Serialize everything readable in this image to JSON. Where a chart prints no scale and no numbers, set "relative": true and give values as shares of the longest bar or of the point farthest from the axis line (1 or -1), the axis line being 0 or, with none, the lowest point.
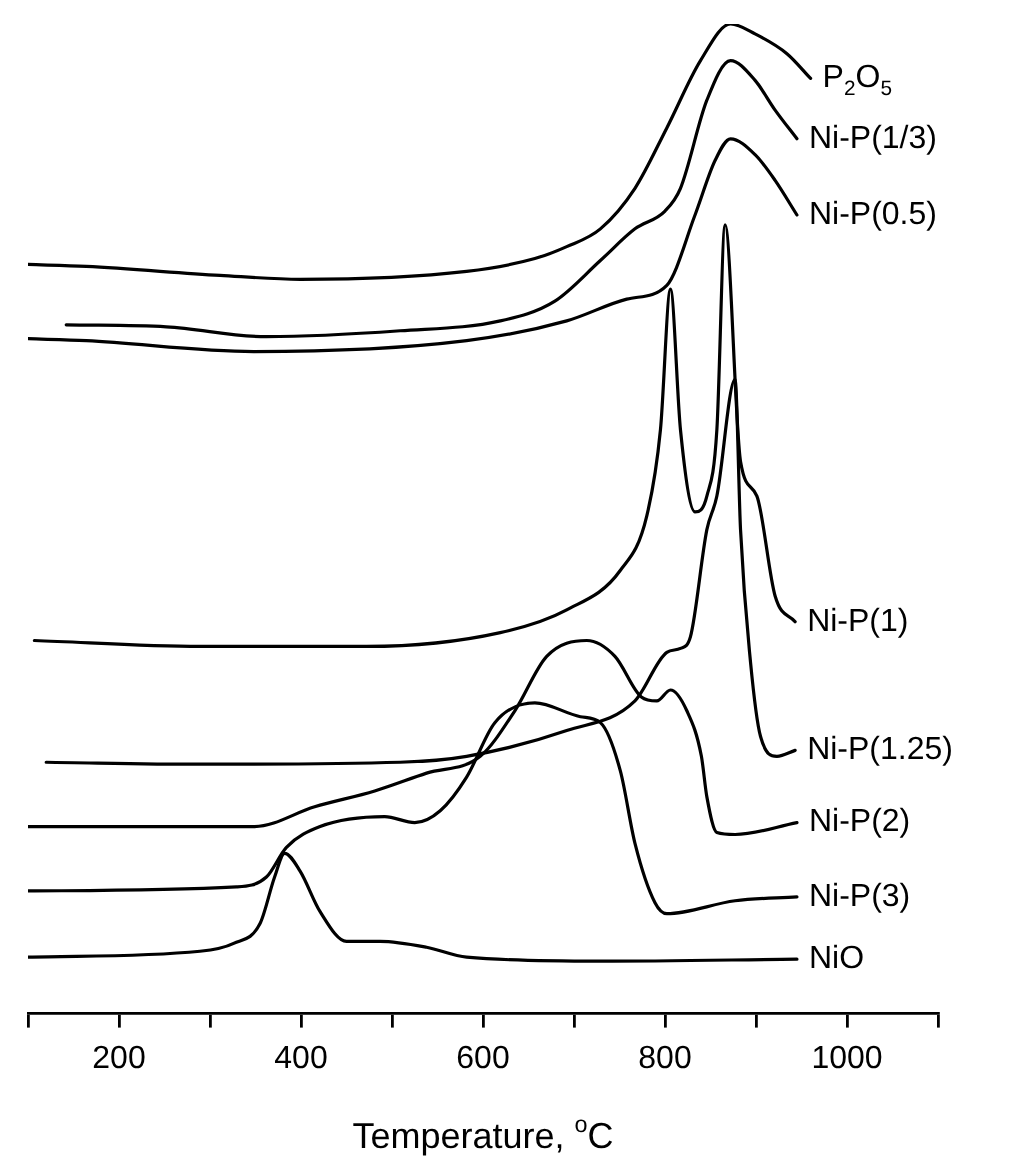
{
  "chart_data": {
    "type": "line",
    "relative": true,
    "xlabel": "Temperature, $^{o}$C",
    "xlim": [
      100,
      1100
    ],
    "xticks": [
      {
        "value": 100,
        "label": null
      },
      200,
      {
        "value": 300,
        "label": null
      },
      400,
      {
        "value": 500,
        "label": null
      },
      600,
      {
        "value": 700,
        "label": null
      },
      800,
      {
        "value": 900,
        "label": null
      },
      1000,
      {
        "value": 1100,
        "label": null
      }
    ],
    "grid": false,
    "legend": false,
    "marker": "none",
    "line_style": "solid",
    "series": [
      {
        "name": "P$_{2}$O$_{5}$",
        "color": "#000000",
        "x": [
          100,
          164,
          311,
          399,
          582,
          657,
          692,
          729,
          767,
          802,
          839,
          872,
          899,
          934,
          960
        ],
        "values": [
          0.757,
          0.755,
          0.746,
          0.742,
          0.75,
          0.763,
          0.775,
          0.793,
          0.834,
          0.895,
          0.963,
          1.0,
          0.99,
          0.97,
          0.945
        ]
      },
      {
        "name": "Ni-P(1/3)",
        "color": "#000000",
        "x": [
          142,
          252,
          362,
          509,
          619,
          679,
          729,
          767,
          800,
          817,
          846,
          872,
          899,
          921,
          945
        ],
        "values": [
          0.696,
          0.694,
          0.684,
          0.69,
          0.7,
          0.72,
          0.761,
          0.793,
          0.811,
          0.834,
          0.923,
          0.963,
          0.943,
          0.913,
          0.884
        ]
      },
      {
        "name": "Ni-P(0.5)",
        "color": "#000000",
        "x": [
          100,
          164,
          348,
          582,
          692,
          758,
          802,
          833,
          855,
          872,
          899,
          921,
          945
        ],
        "values": [
          0.682,
          0.68,
          0.669,
          0.68,
          0.7,
          0.722,
          0.736,
          0.807,
          0.862,
          0.884,
          0.868,
          0.842,
          0.807
        ]
      },
      {
        "name": "Ni-P(1)",
        "color": "#000000",
        "x": [
          107,
          289,
          472,
          619,
          692,
          751,
          780,
          795,
          806,
          817,
          833,
          846,
          857,
          866,
          883,
          901,
          921,
          943
        ],
        "values": [
          0.377,
          0.371,
          0.371,
          0.385,
          0.408,
          0.448,
          0.503,
          0.59,
          0.732,
          0.59,
          0.507,
          0.523,
          0.59,
          0.797,
          0.558,
          0.523,
          0.422,
          0.396
        ]
      },
      {
        "name": "Ni-P(1.25)",
        "color": "#000000",
        "x": [
          120,
          289,
          509,
          582,
          692,
          767,
          802,
          817,
          828,
          846,
          857,
          877,
          883,
          894,
          905,
          923,
          943
        ],
        "values": [
          0.254,
          0.252,
          0.254,
          0.26,
          0.286,
          0.316,
          0.365,
          0.369,
          0.381,
          0.489,
          0.523,
          0.641,
          0.489,
          0.355,
          0.28,
          0.26,
          0.266
        ]
      },
      {
        "name": "Ni-P(2)",
        "color": "#000000",
        "x": [
          100,
          349,
          415,
          481,
          538,
          597,
          635,
          670,
          714,
          745,
          774,
          791,
          806,
          824,
          840,
          846,
          857,
          877,
          945
        ],
        "values": [
          0.189,
          0.189,
          0.209,
          0.225,
          0.243,
          0.26,
          0.306,
          0.361,
          0.377,
          0.361,
          0.32,
          0.316,
          0.327,
          0.306,
          0.26,
          0.219,
          0.183,
          0.181,
          0.193
        ]
      },
      {
        "name": "Ni-P(3)",
        "color": "#000000",
        "x": [
          100,
          329,
          362,
          384,
          421,
          492,
          525,
          553,
          582,
          613,
          657,
          707,
          729,
          751,
          767,
          789,
          802,
          877,
          945
        ],
        "values": [
          0.124,
          0.128,
          0.138,
          0.168,
          0.189,
          0.199,
          0.193,
          0.205,
          0.239,
          0.294,
          0.314,
          0.3,
          0.294,
          0.245,
          0.172,
          0.112,
          0.101,
          0.114,
          0.118
        ]
      },
      {
        "name": "NiO",
        "color": "#000000",
        "x": [
          100,
          289,
          326,
          355,
          371,
          382,
          399,
          421,
          450,
          487,
          538,
          582,
          729,
          945
        ],
        "values": [
          0.057,
          0.063,
          0.071,
          0.091,
          0.138,
          0.162,
          0.144,
          0.103,
          0.073,
          0.073,
          0.067,
          0.057,
          0.053,
          0.055
        ]
      }
    ]
  }
}
